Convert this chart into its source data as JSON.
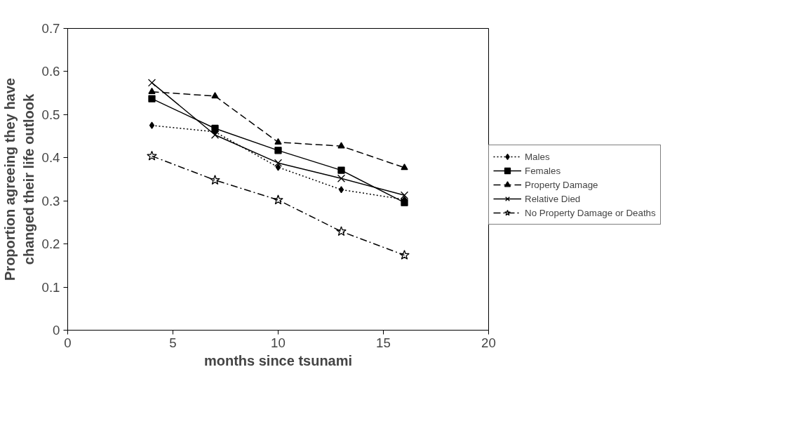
{
  "chart_data": {
    "type": "line",
    "xlabel": "months since tsunami",
    "ylabel": "Proportion agreeing they have changed their life outlook",
    "x": [
      4,
      7,
      10,
      13,
      16
    ],
    "series": [
      {
        "name": "Males",
        "color": "#000000",
        "marker": "diamond",
        "line_style": "dotted",
        "values": [
          0.475,
          0.46,
          0.378,
          0.326,
          0.303
        ]
      },
      {
        "name": "Females",
        "color": "#000000",
        "marker": "square",
        "line_style": "solid",
        "values": [
          0.537,
          0.468,
          0.417,
          0.371,
          0.296
        ]
      },
      {
        "name": "Property Damage",
        "color": "#000000",
        "marker": "triangle",
        "line_style": "dashed",
        "values": [
          0.553,
          0.543,
          0.436,
          0.427,
          0.377
        ]
      },
      {
        "name": "Relative Died",
        "color": "#000000",
        "marker": "cross",
        "line_style": "solid",
        "values": [
          0.574,
          0.453,
          0.388,
          0.352,
          0.313
        ]
      },
      {
        "name": "No Property Damage or Deaths",
        "color": "#000000",
        "marker": "star",
        "line_style": "dashdot",
        "values": [
          0.404,
          0.348,
          0.302,
          0.229,
          0.174
        ]
      }
    ],
    "xlim": [
      0,
      20
    ],
    "xticks": [
      0,
      5,
      10,
      15,
      20
    ],
    "ylim": [
      0,
      0.7
    ],
    "yticks": [
      0,
      0.1,
      0.2,
      0.3,
      0.4,
      0.5,
      0.6,
      0.7
    ],
    "legend": "right",
    "grid": false
  }
}
